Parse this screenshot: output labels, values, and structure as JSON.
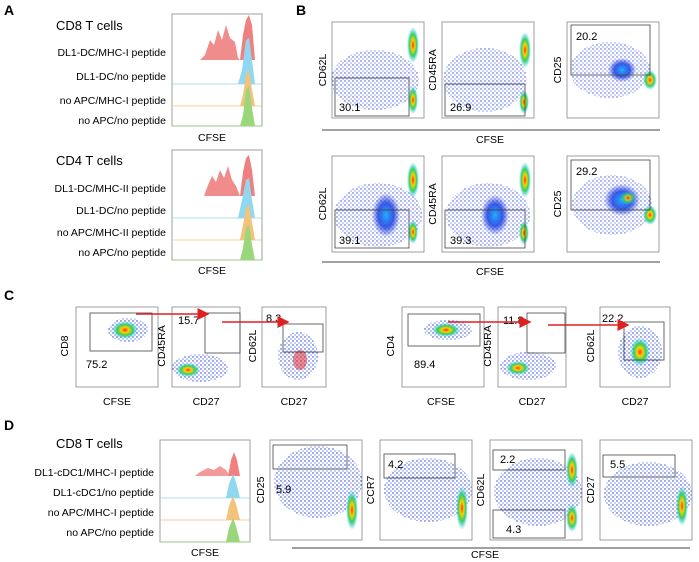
{
  "panel_labels": {
    "A": "A",
    "B": "B",
    "C": "C",
    "D": "D"
  },
  "axis": {
    "cfse": "CFSE",
    "cd27": "CD27",
    "cd62l": "CD62L",
    "cd45ra": "CD45RA",
    "cd25": "CD25",
    "cd8": "CD8",
    "cd4": "CD4",
    "ccr7": "CCR7",
    "cd27_y": "CD27"
  },
  "panel_a": {
    "cd8": {
      "title": "CD8 T cells",
      "rows": [
        "DL1-DC/MHC-I peptide",
        "DL1-DC/no peptide",
        "no APC/MHC-I peptide",
        "no APC/no peptide"
      ]
    },
    "cd4": {
      "title": "CD4 T cells",
      "rows": [
        "DL1-DC/MHC-II peptide",
        "DL1-DC/no peptide",
        "no APC/MHC-II peptide",
        "no APC/no peptide"
      ]
    }
  },
  "panel_b": {
    "cd8": {
      "cd62l": "30.1",
      "cd45ra": "26.9",
      "cd25": "20.2"
    },
    "cd4": {
      "cd62l": "39.1",
      "cd45ra": "39.3",
      "cd25": "29.2"
    }
  },
  "panel_c": {
    "cd8": {
      "gate1": "75.2",
      "gate2": "15.7",
      "gate3": "8.3"
    },
    "cd4": {
      "gate1": "89.4",
      "gate2": "11.8",
      "gate3": "22.2"
    }
  },
  "panel_d": {
    "title": "CD8 T cells",
    "rows": [
      "DL1-cDC1/MHC-I peptide",
      "DL1-cDC1/no peptide",
      "no APC/MHC-I peptide",
      "no APC/no peptide"
    ],
    "cd25_a": "5.9",
    "ccr7": "4.2",
    "cd62l_hi": "2.2",
    "cd62l_lo": "4.3",
    "cd27": "5.5"
  },
  "colors": {
    "red": "#f08080",
    "cyan": "#8fd8ef",
    "orange": "#f4c27a",
    "green": "#9ad77a",
    "arrow": "#e02020",
    "dots": "#1a2fd0"
  }
}
